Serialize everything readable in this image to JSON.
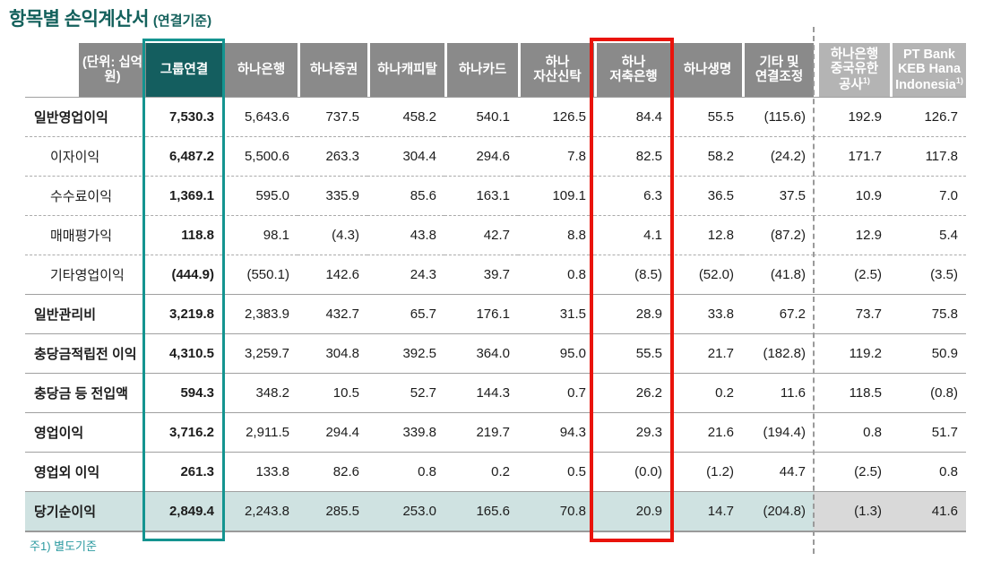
{
  "title": {
    "main": "항목별 손익계산서",
    "suffix": "(연결기준)"
  },
  "footnote": "주1) 별도기준",
  "colors": {
    "title_teal": "#14615c",
    "header_gray": "#8a8a8a",
    "header_light_gray": "#b4b4b4",
    "group_header_fill": "#145e5f",
    "group_box_border": "#149490",
    "highlight_box_red": "#e9130b",
    "total_row_teal": "#cfe2e1",
    "total_row_gray": "#d9d9d9",
    "footnote_teal": "#2b9aa0"
  },
  "table": {
    "unit_label": "(단위: 십억원)",
    "columns": [
      {
        "id": "group-consolidated",
        "lines": [
          "그룹연결"
        ],
        "box": "teal"
      },
      {
        "id": "hana-bank",
        "lines": [
          "하나은행"
        ]
      },
      {
        "id": "hana-securities",
        "lines": [
          "하나증권"
        ]
      },
      {
        "id": "hana-capital",
        "lines": [
          "하나캐피탈"
        ]
      },
      {
        "id": "hana-card",
        "lines": [
          "하나카드"
        ]
      },
      {
        "id": "hana-asset-trust",
        "lines": [
          "하나",
          "자산신탁"
        ]
      },
      {
        "id": "hana-savings-bank",
        "lines": [
          "하나",
          "저축은행"
        ],
        "box": "red"
      },
      {
        "id": "hana-life",
        "lines": [
          "하나생명"
        ]
      },
      {
        "id": "other-and-consolidation-adj",
        "lines": [
          "기타 및",
          "연결조정"
        ]
      },
      {
        "id": "hana-bank-china",
        "lines": [
          "하나은행",
          "중국유한",
          "공사"
        ],
        "sup": "1)",
        "light": true
      },
      {
        "id": "pt-bank-keb-hana-indonesia",
        "lines": [
          "PT Bank",
          "KEB Hana",
          "Indonesia"
        ],
        "sup": "1)",
        "light": true
      }
    ],
    "rows": [
      {
        "label": "일반영업이익",
        "style": "major",
        "values": [
          "7,530.3",
          "5,643.6",
          "737.5",
          "458.2",
          "540.1",
          "126.5",
          "84.4",
          "55.5",
          "(115.6)",
          "192.9",
          "126.7"
        ]
      },
      {
        "label": "이자이익",
        "style": "sub",
        "values": [
          "6,487.2",
          "5,500.6",
          "263.3",
          "304.4",
          "294.6",
          "7.8",
          "82.5",
          "58.2",
          "(24.2)",
          "171.7",
          "117.8"
        ]
      },
      {
        "label": "수수료이익",
        "style": "sub",
        "values": [
          "1,369.1",
          "595.0",
          "335.9",
          "85.6",
          "163.1",
          "109.1",
          "6.3",
          "36.5",
          "37.5",
          "10.9",
          "7.0"
        ]
      },
      {
        "label": "매매평가익",
        "style": "sub",
        "values": [
          "118.8",
          "98.1",
          "(4.3)",
          "43.8",
          "42.7",
          "8.8",
          "4.1",
          "12.8",
          "(87.2)",
          "12.9",
          "5.4"
        ]
      },
      {
        "label": "기타영업이익",
        "style": "sub",
        "values": [
          "(444.9)",
          "(550.1)",
          "142.6",
          "24.3",
          "39.7",
          "0.8",
          "(8.5)",
          "(52.0)",
          "(41.8)",
          "(2.5)",
          "(3.5)"
        ]
      },
      {
        "label": "일반관리비",
        "style": "major",
        "values": [
          "3,219.8",
          "2,383.9",
          "432.7",
          "65.7",
          "176.1",
          "31.5",
          "28.9",
          "33.8",
          "67.2",
          "73.7",
          "75.8"
        ]
      },
      {
        "label": "충당금적립전 이익",
        "style": "major",
        "values": [
          "4,310.5",
          "3,259.7",
          "304.8",
          "392.5",
          "364.0",
          "95.0",
          "55.5",
          "21.7",
          "(182.8)",
          "119.2",
          "50.9"
        ]
      },
      {
        "label": "충당금 등 전입액",
        "style": "major",
        "values": [
          "594.3",
          "348.2",
          "10.5",
          "52.7",
          "144.3",
          "0.7",
          "26.2",
          "0.2",
          "11.6",
          "118.5",
          "(0.8)"
        ]
      },
      {
        "label": "영업이익",
        "style": "major",
        "values": [
          "3,716.2",
          "2,911.5",
          "294.4",
          "339.8",
          "219.7",
          "94.3",
          "29.3",
          "21.6",
          "(194.4)",
          "0.8",
          "51.7"
        ]
      },
      {
        "label": "영업외 이익",
        "style": "major",
        "values": [
          "261.3",
          "133.8",
          "82.6",
          "0.8",
          "0.2",
          "0.5",
          "(0.0)",
          "(1.2)",
          "44.7",
          "(2.5)",
          "0.8"
        ]
      },
      {
        "label": "당기순이익",
        "style": "total",
        "values": [
          "2,849.4",
          "2,243.8",
          "285.5",
          "253.0",
          "165.6",
          "70.8",
          "20.9",
          "14.7",
          "(204.8)",
          "(1.3)",
          "41.6"
        ]
      }
    ]
  }
}
